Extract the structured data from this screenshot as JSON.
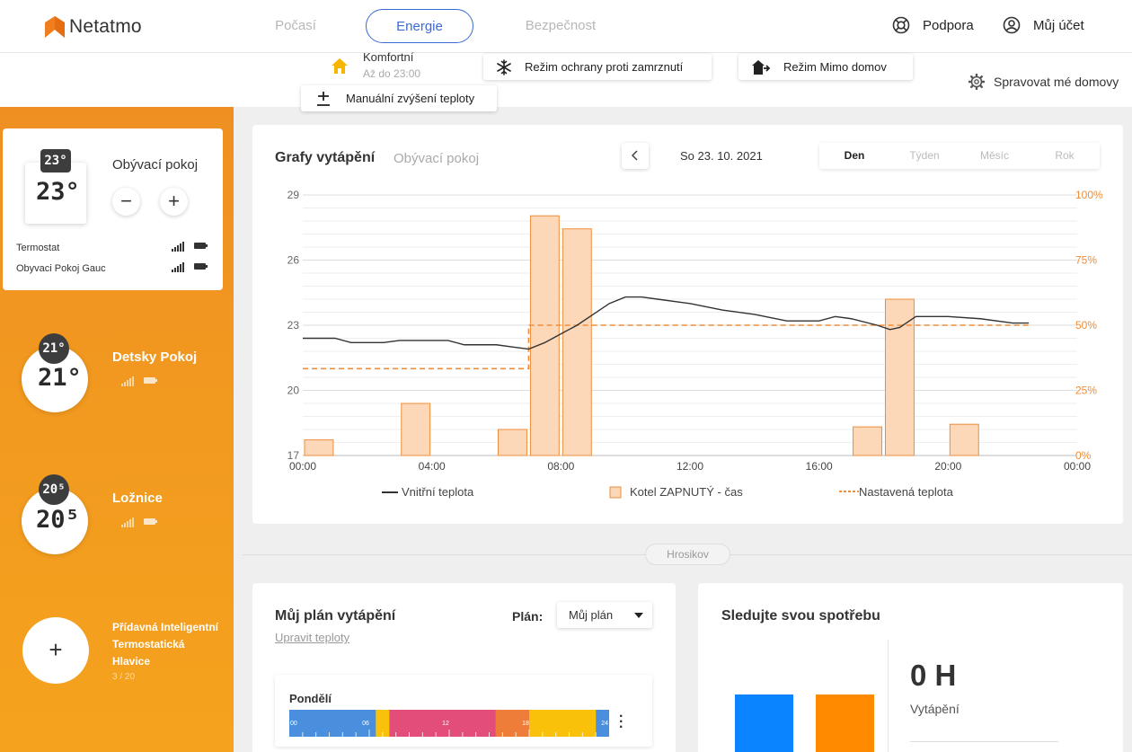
{
  "app": {
    "brand": "Netatmo",
    "nav_tabs": [
      {
        "label": "Počasí",
        "active": false
      },
      {
        "label": "Energie",
        "active": true
      },
      {
        "label": "Bezpečnost",
        "active": false
      }
    ],
    "support": "Podpora",
    "account": "Můj účet",
    "icons": {
      "support": "lifebuoy-icon",
      "account": "user-circle-icon"
    }
  },
  "modes": {
    "comfort_title": "Komfortní",
    "comfort_sub": "Až do 23:00",
    "manual_boost": "Manuální zvýšení teploty",
    "frost_protection": "Režim ochrany proti zamrznutí",
    "away": "Režim Mimo domov",
    "manage_homes": "Spravovat mé domovy"
  },
  "rooms": [
    {
      "name": "Obývací pokoj",
      "temp_badge": "23°",
      "temp_big": "23°",
      "selected": true,
      "devices": [
        {
          "name": "Termostat"
        },
        {
          "name": "Obyvaci Pokoj Gauc"
        }
      ]
    },
    {
      "name": "Detsky Pokoj",
      "temp_badge": "21°",
      "temp_big": "21°",
      "selected": false
    },
    {
      "name": "Ložnice",
      "temp_badge": "20⁵",
      "temp_big": "20⁵",
      "selected": false
    }
  ],
  "add_device": {
    "label": "Přídavná Inteligentní Termostatická Hlavice",
    "count": "3 / 20"
  },
  "chart_card": {
    "title": "Grafy vytápění",
    "room": "Obývací pokoj",
    "date": "So 23. 10. 2021",
    "periods": [
      {
        "label": "Den",
        "active": true
      },
      {
        "label": "Týden",
        "active": false
      },
      {
        "label": "Měsíc",
        "active": false
      },
      {
        "label": "Rok",
        "active": false
      }
    ]
  },
  "chart_data": {
    "type": "bar",
    "x_ticks": [
      "00:00",
      "04:00",
      "08:00",
      "12:00",
      "16:00",
      "20:00",
      "00:00"
    ],
    "xlim_hours": [
      0,
      24
    ],
    "y_left": {
      "ticks": [
        17,
        20,
        23,
        26,
        29
      ],
      "range": [
        17,
        29
      ]
    },
    "y_right": {
      "ticks": [
        "0%",
        "25%",
        "50%",
        "75%",
        "100%"
      ],
      "range": [
        0,
        100
      ]
    },
    "grid": true,
    "legend_position": "bottom",
    "legend": [
      "Vnitřní teplota",
      "Kotel ZAPNUTÝ - čas",
      "Nastavená teplota"
    ],
    "boiler_on_pct": [
      {
        "hour": 0,
        "value": 6
      },
      {
        "hour": 3,
        "value": 20
      },
      {
        "hour": 6,
        "value": 10
      },
      {
        "hour": 7,
        "value": 92
      },
      {
        "hour": 8,
        "value": 87
      },
      {
        "hour": 17,
        "value": 11
      },
      {
        "hour": 18,
        "value": 60
      },
      {
        "hour": 20,
        "value": 12
      }
    ],
    "indoor_temp": [
      [
        0,
        22.4
      ],
      [
        1,
        22.4
      ],
      [
        1.5,
        22.2
      ],
      [
        2.5,
        22.2
      ],
      [
        3,
        22.3
      ],
      [
        4.5,
        22.3
      ],
      [
        5,
        22.1
      ],
      [
        6,
        22.1
      ],
      [
        6.5,
        22.0
      ],
      [
        7,
        21.9
      ],
      [
        7.5,
        22.2
      ],
      [
        8,
        22.6
      ],
      [
        8.5,
        23.0
      ],
      [
        9,
        23.5
      ],
      [
        9.5,
        24.0
      ],
      [
        10,
        24.3
      ],
      [
        10.5,
        24.3
      ],
      [
        11,
        24.2
      ],
      [
        12,
        24.0
      ],
      [
        13,
        23.7
      ],
      [
        14,
        23.5
      ],
      [
        15,
        23.2
      ],
      [
        16,
        23.2
      ],
      [
        16.5,
        23.4
      ],
      [
        17,
        23.3
      ],
      [
        17.8,
        23.0
      ],
      [
        18.2,
        22.8
      ],
      [
        18.5,
        22.9
      ],
      [
        19,
        23.4
      ],
      [
        20,
        23.4
      ],
      [
        21,
        23.3
      ],
      [
        22,
        23.1
      ],
      [
        22.5,
        23.1
      ]
    ],
    "setpoint": [
      [
        0,
        21.0
      ],
      [
        7,
        21.0
      ],
      [
        7,
        23.0
      ],
      [
        22.5,
        23.0
      ]
    ]
  },
  "home_name": "Hrosikov",
  "plan": {
    "title": "Můj plán vytápění",
    "edit_link": "Upravit teploty",
    "label": "Plán:",
    "selected": "Můj plán",
    "day": "Pondělí",
    "segments": [
      {
        "from": 0,
        "to": 6.5,
        "color": "#4a8fdd"
      },
      {
        "from": 6.5,
        "to": 7.5,
        "color": "#f9c10a"
      },
      {
        "from": 7.5,
        "to": 15.5,
        "color": "#e34d7a"
      },
      {
        "from": 15.5,
        "to": 18,
        "color": "#ef7d3a"
      },
      {
        "from": 18,
        "to": 23,
        "color": "#f9c10a"
      },
      {
        "from": 23,
        "to": 24,
        "color": "#4a8fdd"
      }
    ],
    "tick_labels": [
      "00",
      "06",
      "12",
      "18",
      "24"
    ]
  },
  "consumption": {
    "title": "Sledujte svou spotřebu",
    "value": "0 H",
    "label": "Vytápění",
    "bar_colors": [
      "#0a84ff",
      "#ff8a00"
    ]
  },
  "colors": {
    "accent": "#3c6ad4",
    "orange": "#f0851e",
    "bar_fill": "#fcd8b8",
    "bar_stroke": "#ee8d3b"
  }
}
